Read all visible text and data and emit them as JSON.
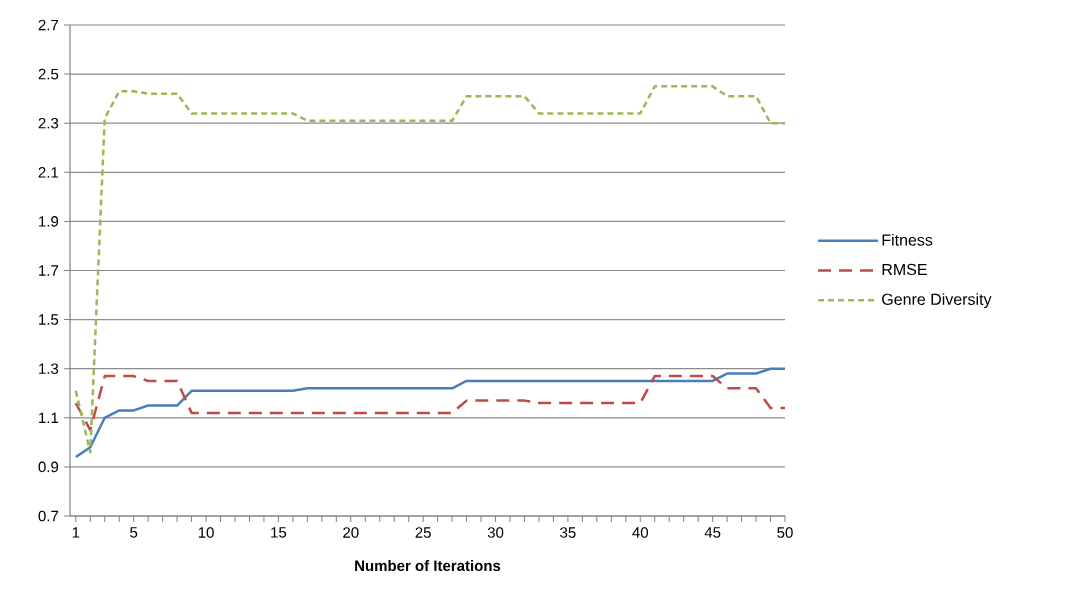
{
  "chart_data": {
    "type": "line",
    "xlabel": "Number of Iterations",
    "categories": [
      "1",
      null,
      null,
      null,
      "5",
      null,
      null,
      null,
      null,
      "10",
      null,
      null,
      null,
      null,
      "15",
      null,
      null,
      null,
      null,
      "20",
      null,
      null,
      null,
      null,
      "25",
      null,
      null,
      null,
      null,
      "30",
      null,
      null,
      null,
      null,
      "35",
      null,
      null,
      null,
      null,
      "40",
      null,
      null,
      null,
      null,
      "45",
      null,
      null,
      null,
      null,
      "50"
    ],
    "series": [
      {
        "name": "Fitness",
        "color": "#4a7ebb",
        "line_style": "solid",
        "values": [
          0.94,
          0.98,
          1.1,
          1.13,
          1.13,
          1.15,
          1.15,
          1.15,
          1.21,
          1.21,
          1.21,
          1.21,
          1.21,
          1.21,
          1.21,
          1.21,
          1.22,
          1.22,
          1.22,
          1.22,
          1.22,
          1.22,
          1.22,
          1.22,
          1.22,
          1.22,
          1.22,
          1.25,
          1.25,
          1.25,
          1.25,
          1.25,
          1.25,
          1.25,
          1.25,
          1.25,
          1.25,
          1.25,
          1.25,
          1.25,
          1.25,
          1.25,
          1.25,
          1.25,
          1.25,
          1.28,
          1.28,
          1.28,
          1.3,
          1.3
        ]
      },
      {
        "name": "RMSE",
        "color": "#be4b48",
        "line_style": "dashed",
        "values": [
          1.16,
          1.05,
          1.27,
          1.27,
          1.27,
          1.25,
          1.25,
          1.25,
          1.12,
          1.12,
          1.12,
          1.12,
          1.12,
          1.12,
          1.12,
          1.12,
          1.12,
          1.12,
          1.12,
          1.12,
          1.12,
          1.12,
          1.12,
          1.12,
          1.12,
          1.12,
          1.12,
          1.17,
          1.17,
          1.17,
          1.17,
          1.17,
          1.16,
          1.16,
          1.16,
          1.16,
          1.16,
          1.16,
          1.16,
          1.16,
          1.27,
          1.27,
          1.27,
          1.27,
          1.27,
          1.22,
          1.22,
          1.22,
          1.14,
          1.14
        ]
      },
      {
        "name": "Genre Diversity",
        "color": "#98b954",
        "line_style": "dotted",
        "values": [
          1.21,
          0.96,
          2.32,
          2.43,
          2.43,
          2.42,
          2.42,
          2.42,
          2.34,
          2.34,
          2.34,
          2.34,
          2.34,
          2.34,
          2.34,
          2.34,
          2.31,
          2.31,
          2.31,
          2.31,
          2.31,
          2.31,
          2.31,
          2.31,
          2.31,
          2.31,
          2.31,
          2.41,
          2.41,
          2.41,
          2.41,
          2.41,
          2.34,
          2.34,
          2.34,
          2.34,
          2.34,
          2.34,
          2.34,
          2.34,
          2.45,
          2.45,
          2.45,
          2.45,
          2.45,
          2.41,
          2.41,
          2.41,
          2.3,
          2.3
        ]
      }
    ],
    "ylim": [
      0.7,
      2.7
    ],
    "yticks": [
      0.7,
      0.9,
      1.1,
      1.3,
      1.5,
      1.7,
      1.9,
      2.1,
      2.3,
      2.5,
      2.7
    ],
    "grid": "y",
    "legend": "right",
    "marker": "none"
  }
}
